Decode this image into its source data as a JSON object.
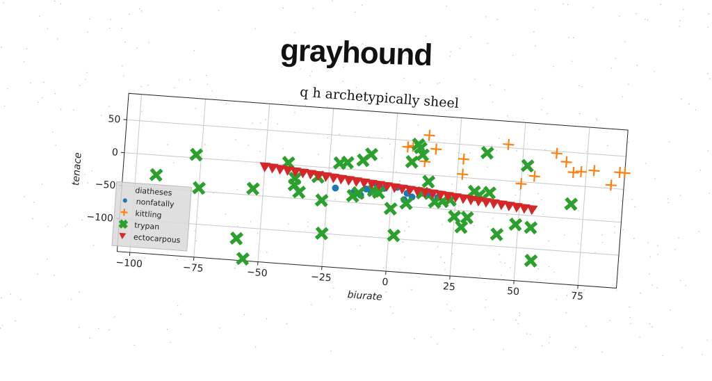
{
  "page_title": "grayhound",
  "chart_data": {
    "type": "scatter",
    "title": "q h archetypically sheel",
    "xlabel": "biurate",
    "ylabel": "tenace",
    "xlim": [
      -105,
      90
    ],
    "ylim": [
      -150,
      90
    ],
    "xticks": [
      "−100",
      "−75",
      "−50",
      "−25",
      "0",
      "25",
      "50",
      "75"
    ],
    "xtick_values": [
      -100,
      -75,
      -50,
      -25,
      0,
      25,
      50,
      75
    ],
    "yticks": [
      "50",
      "0",
      "−50",
      "−100"
    ],
    "ytick_values": [
      50,
      0,
      -50,
      -100
    ],
    "grid": true,
    "legend": {
      "title": "diatheses",
      "position": "lower-left"
    },
    "series": [
      {
        "name": "nonfatally",
        "marker": "circle",
        "color": "#1f77b4",
        "x": [
          -22,
          -15,
          -12,
          -10,
          -8,
          -6,
          -3,
          2,
          5,
          8,
          12,
          15,
          18,
          6
        ],
        "y": [
          -30,
          -35,
          -38,
          -28,
          -32,
          -20,
          -25,
          -22,
          -40,
          -35,
          -28,
          -30,
          -33,
          -30
        ]
      },
      {
        "name": "kittling",
        "marker": "plus",
        "color": "#ff7f0e",
        "x": [
          5,
          7,
          13,
          16,
          12,
          27,
          44,
          27,
          55,
          50,
          63,
          67,
          70,
          73,
          78,
          85,
          90,
          88
        ],
        "y": [
          40,
          42,
          60,
          40,
          20,
          28,
          55,
          5,
          10,
          -3,
          47,
          35,
          20,
          22,
          25,
          5,
          25,
          25
        ]
      },
      {
        "name": "trypan",
        "marker": "x",
        "color": "#2ca02c",
        "x": [
          -92,
          -77,
          -75,
          -59,
          -54,
          -56,
          -41,
          -38,
          -38,
          -36,
          -29,
          -27,
          -26,
          -21,
          -18,
          -15,
          -13,
          -12,
          -9,
          -7,
          -5,
          0,
          2,
          6,
          7,
          9,
          10,
          11,
          12,
          14,
          17,
          20,
          23,
          25,
          28,
          30,
          32,
          34,
          36,
          38,
          42,
          49,
          52,
          55,
          56,
          70
        ],
        "y": [
          -30,
          5,
          -45,
          -117,
          -40,
          -147,
          3,
          -20,
          -30,
          -40,
          -15,
          -50,
          -100,
          8,
          10,
          -40,
          -35,
          15,
          25,
          -30,
          -32,
          -55,
          -95,
          -45,
          18,
          45,
          40,
          30,
          -28,
          -10,
          -40,
          -38,
          -35,
          -60,
          -75,
          -60,
          -20,
          -25,
          40,
          -20,
          -82,
          -65,
          25,
          -68,
          -118,
          -28
        ]
      },
      {
        "name": "ectocarpous",
        "marker": "triangle-down",
        "color": "#d62728",
        "x": [
          -50,
          -47,
          -44,
          -41,
          -38,
          -35,
          -32,
          -29,
          -26,
          -23,
          -20,
          -17,
          -14,
          -11,
          -8,
          -5,
          -2,
          1,
          4,
          7,
          10,
          13,
          16,
          19,
          22,
          25,
          28,
          31,
          34,
          37,
          40,
          43,
          46,
          49,
          52,
          55
        ],
        "y": [
          -6,
          -7,
          -8,
          -9,
          -10,
          -11,
          -12,
          -13,
          -14,
          -15,
          -16,
          -17,
          -18,
          -19,
          -20,
          -21,
          -22,
          -23,
          -24,
          -25,
          -26,
          -27,
          -28,
          -29,
          -30,
          -31,
          -32,
          -33,
          -34,
          -35,
          -36,
          -37,
          -38,
          -39,
          -40,
          -41
        ]
      }
    ]
  }
}
